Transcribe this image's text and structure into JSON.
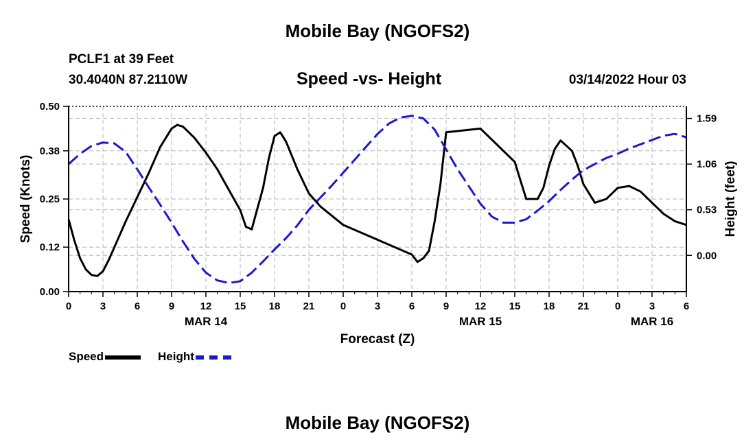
{
  "page": {
    "title_top": "Mobile Bay (NGOFS2)",
    "station": "PCLF1 at 39 Feet",
    "coords": "30.4040N  87.2110W",
    "subtitle": "Speed -vs- Height",
    "datetime": "03/14/2022 Hour 03",
    "title_bottom": "Mobile Bay (NGOFS2)"
  },
  "legend": {
    "speed_label": "Speed",
    "height_label": "Height"
  },
  "colors": {
    "speed": "#000000",
    "height": "#1a1acc",
    "grid": "#b4b4b4"
  },
  "chart_data": {
    "type": "line",
    "xlabel": "Forecast (Z)",
    "ylabel_left": "Speed (Knots)",
    "ylabel_right": "Height (feet)",
    "x_unit": "forecast hour",
    "xlim": [
      0,
      54
    ],
    "x_ticks": [
      0,
      3,
      6,
      9,
      12,
      15,
      18,
      21,
      24,
      27,
      30,
      33,
      36,
      39,
      42,
      45,
      48,
      51,
      54
    ],
    "x_tick_labels": [
      "0",
      "3",
      "6",
      "9",
      "12",
      "15",
      "18",
      "21",
      "0",
      "3",
      "6",
      "9",
      "12",
      "15",
      "18",
      "21",
      "0",
      "3",
      "6"
    ],
    "date_labels": [
      {
        "x": 12,
        "label": "MAR 14"
      },
      {
        "x": 36,
        "label": "MAR 15"
      },
      {
        "x": 51,
        "label": "MAR 16"
      }
    ],
    "ylim_left": [
      0,
      0.5
    ],
    "yticks_left": [
      0.0,
      0.12,
      0.25,
      0.38,
      0.5
    ],
    "ytick_labels_left": [
      "0.00",
      "0.12",
      "0.25",
      "0.38",
      "0.50"
    ],
    "ylim_right": [
      -0.42,
      1.73
    ],
    "yticks_right": [
      0.0,
      0.53,
      1.06,
      1.59
    ],
    "ytick_labels_right": [
      "0.00",
      "0.53",
      "1.06",
      "1.59"
    ],
    "grid": true,
    "legend_position": "bottom-left",
    "series": [
      {
        "name": "Speed",
        "axis": "left",
        "style": "solid",
        "x": [
          0,
          0.5,
          1,
          1.5,
          2,
          2.5,
          3,
          3.5,
          4,
          5,
          6,
          7,
          8,
          9,
          9.5,
          10,
          11,
          12,
          13,
          14,
          15,
          15.5,
          16,
          17,
          17.5,
          18,
          18.5,
          19,
          20,
          21,
          22,
          24,
          27,
          30,
          30.5,
          31,
          31.5,
          32,
          32.5,
          33,
          36,
          39,
          39.5,
          40,
          41,
          41.5,
          42,
          42.5,
          43,
          44,
          44.5,
          45,
          46,
          47,
          47.5,
          48,
          49,
          50,
          51,
          52,
          53,
          54
        ],
        "values": [
          0.195,
          0.138,
          0.09,
          0.06,
          0.045,
          0.042,
          0.055,
          0.085,
          0.12,
          0.19,
          0.255,
          0.32,
          0.39,
          0.44,
          0.45,
          0.445,
          0.415,
          0.375,
          0.33,
          0.275,
          0.22,
          0.175,
          0.168,
          0.28,
          0.36,
          0.42,
          0.43,
          0.405,
          0.33,
          0.265,
          0.23,
          0.18,
          0.14,
          0.1,
          0.08,
          0.09,
          0.11,
          0.19,
          0.29,
          0.43,
          0.44,
          0.35,
          0.3,
          0.25,
          0.25,
          0.28,
          0.34,
          0.385,
          0.408,
          0.38,
          0.34,
          0.29,
          0.24,
          0.25,
          0.265,
          0.28,
          0.285,
          0.27,
          0.24,
          0.21,
          0.19,
          0.18
        ]
      },
      {
        "name": "Height",
        "axis": "right",
        "style": "dashed",
        "x": [
          0,
          1,
          2,
          3,
          4,
          5,
          6,
          7,
          8,
          9,
          10,
          11,
          12,
          13,
          14,
          15,
          16,
          17,
          18,
          19,
          20,
          21,
          22,
          23,
          24,
          25,
          26,
          27,
          28,
          29,
          30,
          31,
          32,
          33,
          34,
          35,
          36,
          37,
          38,
          39,
          40,
          41,
          42,
          43,
          44,
          45,
          46,
          47,
          48,
          49,
          50,
          51,
          52,
          53,
          54
        ],
        "values": [
          1.06,
          1.18,
          1.27,
          1.31,
          1.3,
          1.2,
          1.0,
          0.79,
          0.59,
          0.38,
          0.16,
          -0.04,
          -0.2,
          -0.29,
          -0.32,
          -0.3,
          -0.2,
          -0.07,
          0.07,
          0.2,
          0.35,
          0.53,
          0.67,
          0.81,
          0.96,
          1.11,
          1.26,
          1.41,
          1.53,
          1.6,
          1.62,
          1.59,
          1.46,
          1.23,
          1.0,
          0.8,
          0.6,
          0.45,
          0.38,
          0.38,
          0.42,
          0.52,
          0.63,
          0.76,
          0.88,
          0.99,
          1.06,
          1.13,
          1.18,
          1.24,
          1.29,
          1.34,
          1.39,
          1.41,
          1.37
        ]
      }
    ]
  }
}
